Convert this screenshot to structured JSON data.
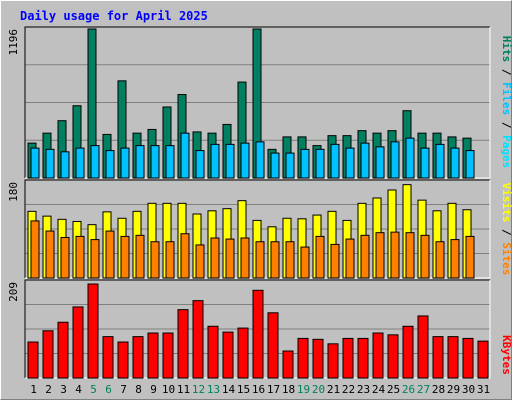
{
  "title": "Daily usage for April 2025",
  "colors": {
    "frame_bg": "#c0c0c0",
    "plot_bg": "#c0c0c0",
    "title_text": "#0000ff",
    "grid": "#808080",
    "hits": "#008060",
    "files": "#00c0ff",
    "pages": "#00e0ff",
    "visits": "#ffff00",
    "sites": "#ff8000",
    "kbytes": "#ff0000",
    "weekend_day": "#00805c",
    "weekday": "#000000"
  },
  "chart_data": [
    {
      "type": "bar",
      "name": "hits-files-pages",
      "ymax_label": "1196",
      "ylim": [
        0,
        1196
      ],
      "categories": [
        "1",
        "2",
        "3",
        "4",
        "5",
        "6",
        "7",
        "8",
        "9",
        "10",
        "11",
        "12",
        "13",
        "14",
        "15",
        "16",
        "17",
        "18",
        "19",
        "20",
        "21",
        "22",
        "23",
        "24",
        "25",
        "26",
        "27",
        "28",
        "29",
        "30",
        "31"
      ],
      "series": [
        {
          "name": "Hits",
          "color": "#008060",
          "values": [
            280,
            360,
            460,
            580,
            1196,
            350,
            780,
            360,
            390,
            570,
            670,
            370,
            360,
            430,
            770,
            1196,
            230,
            330,
            330,
            260,
            340,
            340,
            380,
            360,
            380,
            540,
            360,
            360,
            330,
            320,
            0
          ]
        },
        {
          "name": "Files",
          "color": "#00c0ff",
          "values": [
            240,
            230,
            210,
            240,
            260,
            220,
            240,
            260,
            260,
            260,
            360,
            220,
            270,
            270,
            280,
            290,
            200,
            200,
            230,
            230,
            270,
            240,
            280,
            250,
            290,
            320,
            240,
            270,
            240,
            220,
            0
          ]
        },
        {
          "name": "Pages",
          "color": "#00e0ff",
          "values": [
            0,
            0,
            0,
            0,
            0,
            0,
            0,
            0,
            0,
            0,
            0,
            0,
            0,
            0,
            0,
            0,
            0,
            0,
            0,
            0,
            0,
            0,
            0,
            0,
            0,
            0,
            0,
            0,
            0,
            0,
            0
          ]
        }
      ],
      "legend": [
        "Hits",
        "Files",
        "Pages"
      ]
    },
    {
      "type": "bar",
      "name": "visits-sites",
      "ymax_label": "180",
      "ylim": [
        0,
        180
      ],
      "categories": [
        "1",
        "2",
        "3",
        "4",
        "5",
        "6",
        "7",
        "8",
        "9",
        "10",
        "11",
        "12",
        "13",
        "14",
        "15",
        "16",
        "17",
        "18",
        "19",
        "20",
        "21",
        "22",
        "23",
        "24",
        "25",
        "26",
        "27",
        "28",
        "29",
        "30",
        "31"
      ],
      "series": [
        {
          "name": "Visits",
          "color": "#ffff00",
          "values": [
            125,
            116,
            110,
            106,
            100,
            124,
            112,
            125,
            140,
            140,
            140,
            120,
            126,
            130,
            145,
            108,
            96,
            112,
            111,
            118,
            125,
            108,
            140,
            150,
            165,
            175,
            146,
            126,
            140,
            128,
            0
          ]
        },
        {
          "name": "Sites",
          "color": "#ff8000",
          "values": [
            107,
            88,
            76,
            78,
            72,
            88,
            78,
            80,
            68,
            68,
            83,
            62,
            75,
            73,
            75,
            68,
            68,
            68,
            58,
            78,
            63,
            73,
            80,
            85,
            86,
            85,
            80,
            68,
            72,
            78,
            0
          ]
        }
      ],
      "legend": [
        "Sites",
        "Visits"
      ]
    },
    {
      "type": "bar",
      "name": "kbytes",
      "ymax_label": "209",
      "ylim": [
        0,
        209
      ],
      "categories": [
        "1",
        "2",
        "3",
        "4",
        "5",
        "6",
        "7",
        "8",
        "9",
        "10",
        "11",
        "12",
        "13",
        "14",
        "15",
        "16",
        "17",
        "18",
        "19",
        "20",
        "21",
        "22",
        "23",
        "24",
        "25",
        "26",
        "27",
        "28",
        "29",
        "30",
        "31"
      ],
      "series": [
        {
          "name": "KBytes",
          "color": "#ff0000",
          "values": [
            80,
            105,
            124,
            158,
            209,
            92,
            80,
            92,
            100,
            100,
            152,
            172,
            115,
            102,
            111,
            195,
            145,
            60,
            88,
            86,
            76,
            88,
            88,
            100,
            96,
            115,
            138,
            92,
            92,
            88,
            82
          ]
        }
      ],
      "legend": [
        "KBytes"
      ]
    }
  ],
  "day_labels": [
    "1",
    "2",
    "3",
    "4",
    "5",
    "6",
    "7",
    "8",
    "9",
    "10",
    "11",
    "12",
    "13",
    "14",
    "15",
    "16",
    "17",
    "18",
    "19",
    "20",
    "21",
    "22",
    "23",
    "24",
    "25",
    "26",
    "27",
    "28",
    "29",
    "30",
    "31"
  ],
  "weekend_days": [
    "5",
    "6",
    "12",
    "13",
    "19",
    "20",
    "26",
    "27"
  ]
}
